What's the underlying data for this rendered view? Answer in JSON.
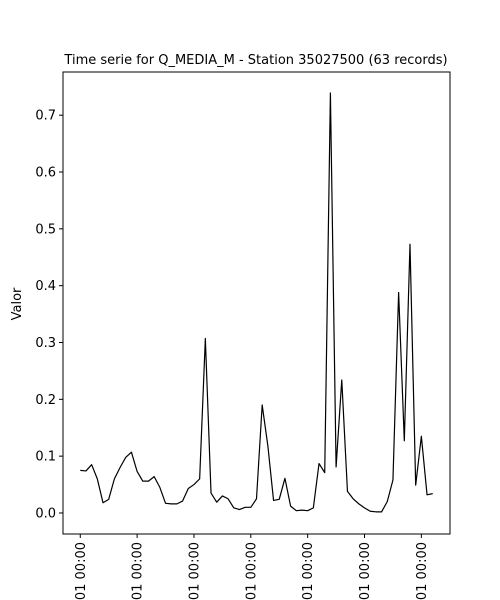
{
  "chart_data": {
    "type": "line",
    "title": "Time serie for Q_MEDIA_M - Station 35027500 (63 records)",
    "xlabel": "",
    "ylabel": "Valor",
    "ylim": [
      -0.037,
      0.776
    ],
    "y_ticks": [
      0.0,
      0.1,
      0.2,
      0.3,
      0.4,
      0.5,
      0.6,
      0.7
    ],
    "y_tick_labels": [
      "0.0",
      "0.1",
      "0.2",
      "0.3",
      "0.4",
      "0.5",
      "0.6",
      "0.7"
    ],
    "x_tick_positions": [
      1,
      11,
      21,
      31,
      41,
      51,
      61
    ],
    "x_tick_labels": [
      "01 00:00",
      "01 00:00",
      "01 00:00",
      "01 00:00",
      "01 00:00",
      "01 00:00",
      "01 00:00"
    ],
    "grid": false,
    "line_color": "#000000",
    "x": [
      1,
      2,
      3,
      4,
      5,
      6,
      7,
      8,
      9,
      10,
      11,
      12,
      13,
      14,
      15,
      16,
      17,
      18,
      19,
      20,
      21,
      22,
      23,
      24,
      25,
      26,
      27,
      28,
      29,
      30,
      31,
      32,
      33,
      34,
      35,
      36,
      37,
      38,
      39,
      40,
      41,
      42,
      43,
      44,
      45,
      46,
      47,
      48,
      49,
      50,
      51,
      52,
      53,
      54,
      55,
      56,
      57,
      58,
      59,
      60,
      61,
      62,
      63
    ],
    "values": [
      0.075,
      0.074,
      0.085,
      0.06,
      0.018,
      0.024,
      0.06,
      0.08,
      0.098,
      0.107,
      0.073,
      0.056,
      0.056,
      0.064,
      0.045,
      0.017,
      0.016,
      0.016,
      0.021,
      0.043,
      0.05,
      0.06,
      0.307,
      0.035,
      0.019,
      0.03,
      0.025,
      0.009,
      0.006,
      0.01,
      0.01,
      0.025,
      0.19,
      0.118,
      0.022,
      0.024,
      0.061,
      0.012,
      0.004,
      0.005,
      0.004,
      0.009,
      0.087,
      0.071,
      0.739,
      0.081,
      0.234,
      0.038,
      0.025,
      0.016,
      0.009,
      0.003,
      0.002,
      0.002,
      0.02,
      0.058,
      0.388,
      0.127,
      0.473,
      0.049,
      0.135,
      0.032,
      0.034
    ]
  }
}
